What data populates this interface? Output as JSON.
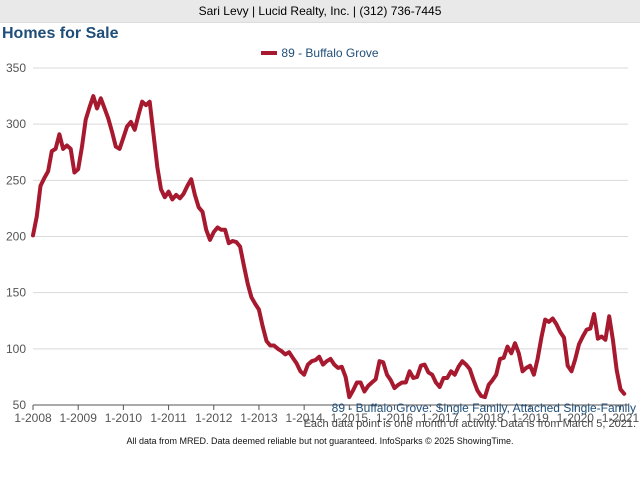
{
  "header": {
    "agent_line": "Sari Levy | Lucid Realty, Inc. | (312) 736-7445"
  },
  "page_title": "Homes for Sale",
  "legend": {
    "series_label": "89 - Buffalo Grove"
  },
  "footer": {
    "series_description": "89 - Buffalo Grove: Single Family, Attached Single-Family",
    "data_note": "Each data point is one month of activity. Data is from March 5, 2021.",
    "copyright": "All data from MRED. Data deemed reliable but not guaranteed. InfoSparks © 2025 ShowingTime."
  },
  "colors": {
    "series": "#a6192e",
    "grid": "#d9d9d9",
    "axis": "#555555"
  },
  "chart_data": {
    "type": "line",
    "title": "Homes for Sale",
    "xlabel": "",
    "ylabel": "",
    "xlim": [
      "2008-01",
      "2021-03"
    ],
    "ylim": [
      50,
      350
    ],
    "yticks": [
      50,
      100,
      150,
      200,
      250,
      300,
      350
    ],
    "xticks": [
      "1-2008",
      "1-2009",
      "1-2010",
      "1-2011",
      "1-2012",
      "1-2013",
      "1-2014",
      "1-2015",
      "1-2016",
      "1-2017",
      "1-2018",
      "1-2019",
      "1-2020",
      "1-2021"
    ],
    "grid": true,
    "legend_position": "top-center",
    "series": [
      {
        "name": "89 - Buffalo Grove",
        "x": [
          "2008-01",
          "2008-02",
          "2008-03",
          "2008-04",
          "2008-05",
          "2008-06",
          "2008-07",
          "2008-08",
          "2008-09",
          "2008-10",
          "2008-11",
          "2008-12",
          "2009-01",
          "2009-02",
          "2009-03",
          "2009-04",
          "2009-05",
          "2009-06",
          "2009-07",
          "2009-08",
          "2009-09",
          "2009-10",
          "2009-11",
          "2009-12",
          "2010-01",
          "2010-02",
          "2010-03",
          "2010-04",
          "2010-05",
          "2010-06",
          "2010-07",
          "2010-08",
          "2010-09",
          "2010-10",
          "2010-11",
          "2010-12",
          "2011-01",
          "2011-02",
          "2011-03",
          "2011-04",
          "2011-05",
          "2011-06",
          "2011-07",
          "2011-08",
          "2011-09",
          "2011-10",
          "2011-11",
          "2011-12",
          "2012-01",
          "2012-02",
          "2012-03",
          "2012-04",
          "2012-05",
          "2012-06",
          "2012-07",
          "2012-08",
          "2012-09",
          "2012-10",
          "2012-11",
          "2012-12",
          "2013-01",
          "2013-02",
          "2013-03",
          "2013-04",
          "2013-05",
          "2013-06",
          "2013-07",
          "2013-08",
          "2013-09",
          "2013-10",
          "2013-11",
          "2013-12",
          "2014-01",
          "2014-02",
          "2014-03",
          "2014-04",
          "2014-05",
          "2014-06",
          "2014-07",
          "2014-08",
          "2014-09",
          "2014-10",
          "2014-11",
          "2014-12",
          "2015-01",
          "2015-02",
          "2015-03",
          "2015-04",
          "2015-05",
          "2015-06",
          "2015-07",
          "2015-08",
          "2015-09",
          "2015-10",
          "2015-11",
          "2015-12",
          "2016-01",
          "2016-02",
          "2016-03",
          "2016-04",
          "2016-05",
          "2016-06",
          "2016-07",
          "2016-08",
          "2016-09",
          "2016-10",
          "2016-11",
          "2016-12",
          "2017-01",
          "2017-02",
          "2017-03",
          "2017-04",
          "2017-05",
          "2017-06",
          "2017-07",
          "2017-08",
          "2017-09",
          "2017-10",
          "2017-11",
          "2017-12",
          "2018-01",
          "2018-02",
          "2018-03",
          "2018-04",
          "2018-05",
          "2018-06",
          "2018-07",
          "2018-08",
          "2018-09",
          "2018-10",
          "2018-11",
          "2018-12",
          "2019-01",
          "2019-02",
          "2019-03",
          "2019-04",
          "2019-05",
          "2019-06",
          "2019-07",
          "2019-08",
          "2019-09",
          "2019-10",
          "2019-11",
          "2019-12",
          "2020-01",
          "2020-02",
          "2020-03",
          "2020-04",
          "2020-05",
          "2020-06",
          "2020-07",
          "2020-08",
          "2020-09",
          "2020-10",
          "2020-11",
          "2020-12",
          "2021-01",
          "2021-02"
        ],
        "values": [
          201,
          218,
          245,
          252,
          258,
          276,
          278,
          291,
          278,
          281,
          278,
          257,
          260,
          280,
          304,
          315,
          325,
          314,
          323,
          314,
          305,
          293,
          280,
          278,
          288,
          298,
          302,
          295,
          308,
          320,
          317,
          320,
          291,
          262,
          242,
          235,
          240,
          233,
          237,
          234,
          238,
          245,
          251,
          237,
          226,
          222,
          206,
          197,
          204,
          208,
          206,
          206,
          194,
          196,
          195,
          191,
          174,
          158,
          146,
          140,
          135,
          120,
          107,
          103,
          103,
          100,
          98,
          95,
          97,
          92,
          87,
          80,
          77,
          86,
          89,
          90,
          93,
          86,
          89,
          91,
          86,
          83,
          84,
          75,
          57,
          63,
          70,
          70,
          62,
          67,
          70,
          73,
          89,
          88,
          77,
          72,
          65,
          68,
          70,
          70,
          80,
          74,
          75,
          85,
          86,
          79,
          77,
          70,
          66,
          74,
          74,
          80,
          77,
          84,
          89,
          86,
          82,
          72,
          63,
          58,
          57,
          68,
          72,
          77,
          91,
          92,
          102,
          96,
          105,
          96,
          80,
          83,
          85,
          77,
          91,
          110,
          126,
          124,
          127,
          122,
          115,
          110,
          85,
          80,
          91,
          104,
          111,
          117,
          118,
          131,
          109,
          111,
          108,
          129,
          108,
          81,
          64,
          60
        ]
      }
    ]
  }
}
